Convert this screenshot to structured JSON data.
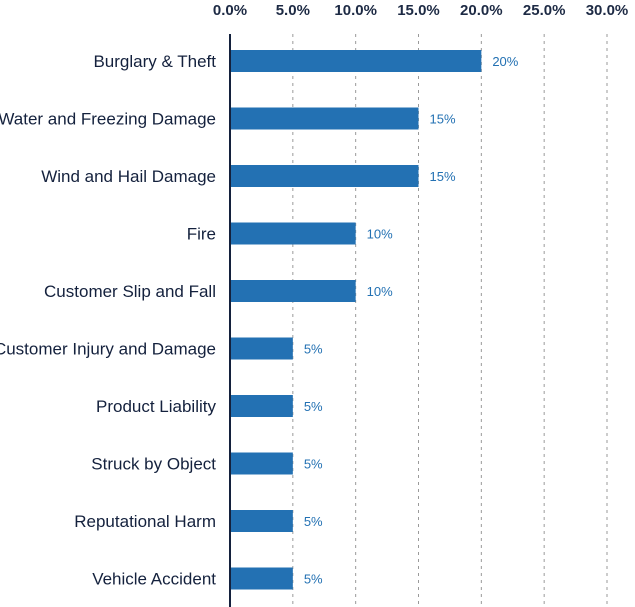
{
  "chart_data": {
    "type": "bar",
    "orientation": "horizontal",
    "title": "",
    "xlabel": "",
    "ylabel": "",
    "xlim": [
      0,
      30
    ],
    "x_ticks": [
      "0.0%",
      "5.0%",
      "10.0%",
      "15.0%",
      "20.0%",
      "25.0%",
      "30.0%"
    ],
    "x_tick_values": [
      0,
      5,
      10,
      15,
      20,
      25,
      30
    ],
    "x_axis_position": "top",
    "grid": "vertical dotted",
    "legend": "none",
    "categories": [
      "Burglary & Theft",
      "Water and Freezing Damage",
      "Wind and Hail Damage",
      "Fire",
      "Customer Slip and Fall",
      "Customer Injury and Damage",
      "Product Liability",
      "Struck by Object",
      "Reputational Harm",
      "Vehicle Accident"
    ],
    "values": [
      20,
      15,
      15,
      10,
      10,
      5,
      5,
      5,
      5,
      5
    ],
    "data_labels": [
      "20%",
      "15%",
      "15%",
      "10%",
      "10%",
      "5%",
      "5%",
      "5%",
      "5%",
      "5%"
    ]
  },
  "colors": {
    "bar": "#2371b3",
    "data_label": "#2371b3",
    "axis": "#14213d",
    "grid": "#9a9a9a",
    "category_text": "#14213d",
    "tick_text": "#1d2a44"
  }
}
